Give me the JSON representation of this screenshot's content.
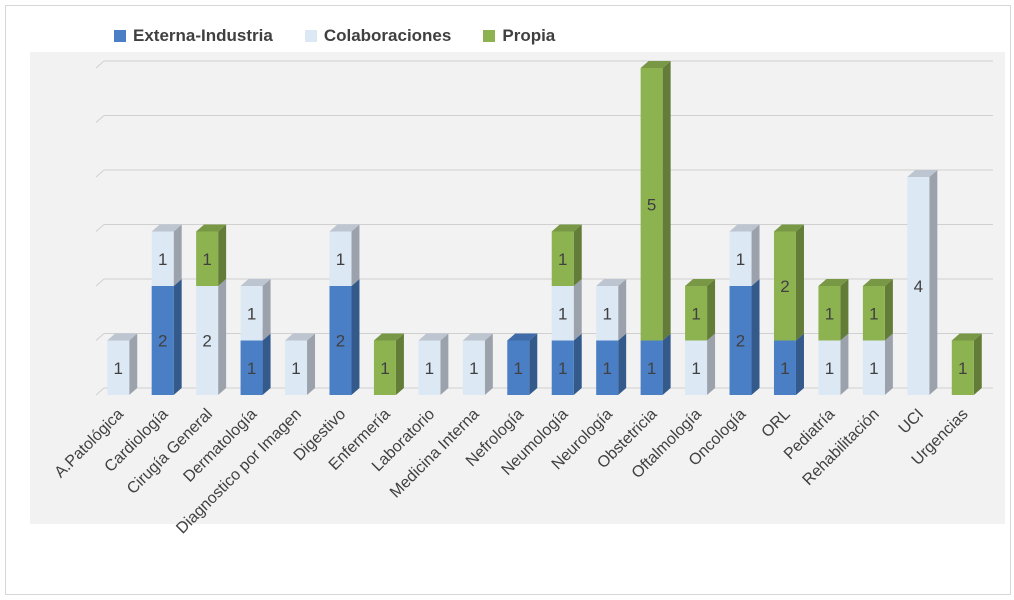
{
  "chart_data": {
    "type": "bar",
    "stacked": true,
    "three_d": true,
    "grid": true,
    "legend_position": "top",
    "title": "",
    "xlabel": "",
    "ylabel": "",
    "ylim": [
      0,
      6
    ],
    "categories": [
      "A.Patológica",
      "Cardiología",
      "Cirugía General",
      "Dermatología",
      "Diagnostico por Imagen",
      "Digestivo",
      "Enfermería",
      "Laboratorio",
      "Medicina Interna",
      "Nefrología",
      "Neumología",
      "Neurología",
      "Obstetricia",
      "Oftalmología",
      "Oncología",
      "ORL",
      "Pediatría",
      "Rehabilitación",
      "UCI",
      "Urgencias"
    ],
    "series": [
      {
        "name": "Externa-Industria",
        "color": "#4a7fc6",
        "values": [
          0,
          2,
          0,
          1,
          0,
          2,
          0,
          0,
          0,
          1,
          1,
          1,
          1,
          0,
          2,
          1,
          0,
          0,
          0,
          0
        ]
      },
      {
        "name": "Colaboraciones",
        "color": "#dde8f5",
        "values": [
          1,
          1,
          2,
          1,
          1,
          1,
          0,
          1,
          1,
          0,
          1,
          1,
          0,
          1,
          1,
          0,
          1,
          1,
          4,
          0
        ]
      },
      {
        "name": "Propia",
        "color": "#8db351",
        "values": [
          0,
          0,
          1,
          0,
          0,
          0,
          1,
          0,
          0,
          0,
          1,
          0,
          5,
          1,
          0,
          2,
          1,
          1,
          0,
          1
        ]
      }
    ]
  }
}
